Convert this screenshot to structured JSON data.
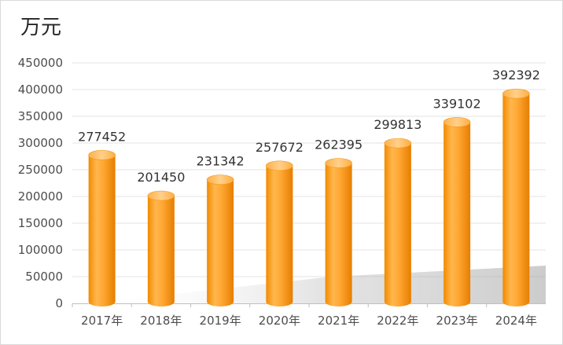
{
  "chart_data": {
    "type": "bar",
    "unit_label": "万元",
    "categories": [
      "2017年",
      "2018年",
      "2019年",
      "2020年",
      "2021年",
      "2022年",
      "2023年",
      "2024年"
    ],
    "values": [
      277452,
      201450,
      231342,
      257672,
      262395,
      299813,
      339102,
      392392
    ],
    "y_ticks": [
      "0",
      "50000",
      "100000",
      "150000",
      "200000",
      "250000",
      "300000",
      "350000",
      "400000",
      "450000"
    ],
    "ylim": [
      0,
      450000
    ],
    "grid": true,
    "legend": "none",
    "bar_color": "#ff9a1a"
  }
}
